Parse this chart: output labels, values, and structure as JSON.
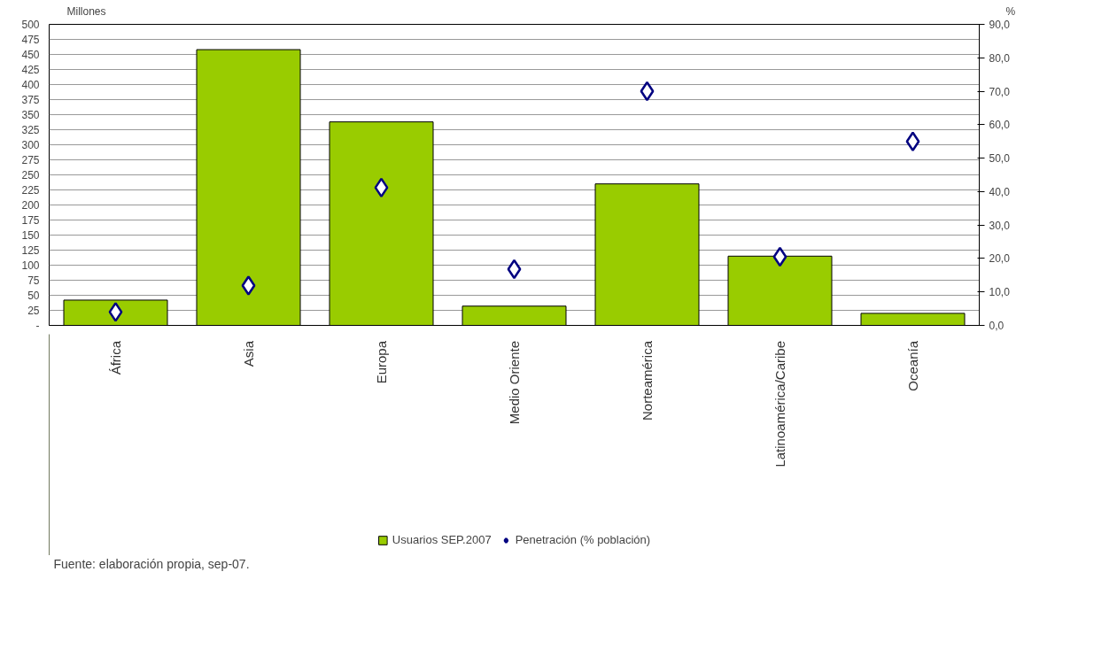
{
  "chart_data": {
    "type": "bar",
    "categories": [
      "África",
      "Asia",
      "Europa",
      "Medio Oriente",
      "Norteamérica",
      "Latinoamérica/Caribe",
      "Oceanía"
    ],
    "ylabel": "Millones",
    "y2label": "%",
    "series": [
      {
        "name": "Usuarios SEP.2007",
        "color": "#99cc00",
        "values": [
          42,
          458,
          338,
          32,
          235,
          115,
          20
        ]
      },
      {
        "name": "Penetración (% población)",
        "type": "scatter",
        "axis": "y2",
        "marker": "diamond",
        "color": "#000080",
        "values": [
          4.0,
          11.9,
          41.2,
          16.8,
          70.0,
          20.5,
          55.0
        ]
      }
    ],
    "ylim": [
      0,
      500
    ],
    "yticks": [
      {
        "value": 0,
        "label": "-"
      },
      25,
      50,
      75,
      100,
      125,
      150,
      175,
      200,
      225,
      250,
      275,
      300,
      325,
      350,
      375,
      400,
      425,
      450,
      475,
      500
    ],
    "y2lim": [
      0,
      90
    ],
    "y2ticks": [
      {
        "value": 0,
        "label": "0,0"
      },
      {
        "value": 10,
        "label": "10,0"
      },
      {
        "value": 20,
        "label": "20,0"
      },
      {
        "value": 30,
        "label": "30,0"
      },
      {
        "value": 40,
        "label": "40,0"
      },
      {
        "value": 50,
        "label": "50,0"
      },
      {
        "value": 60,
        "label": "60,0"
      },
      {
        "value": 70,
        "label": "70,0"
      },
      {
        "value": 80,
        "label": "80,0"
      },
      {
        "value": 90,
        "label": "90,0"
      }
    ],
    "grid": "y",
    "legend": "bottom",
    "annotations": [
      "Fuente: elaboración propia, sep-07."
    ]
  }
}
